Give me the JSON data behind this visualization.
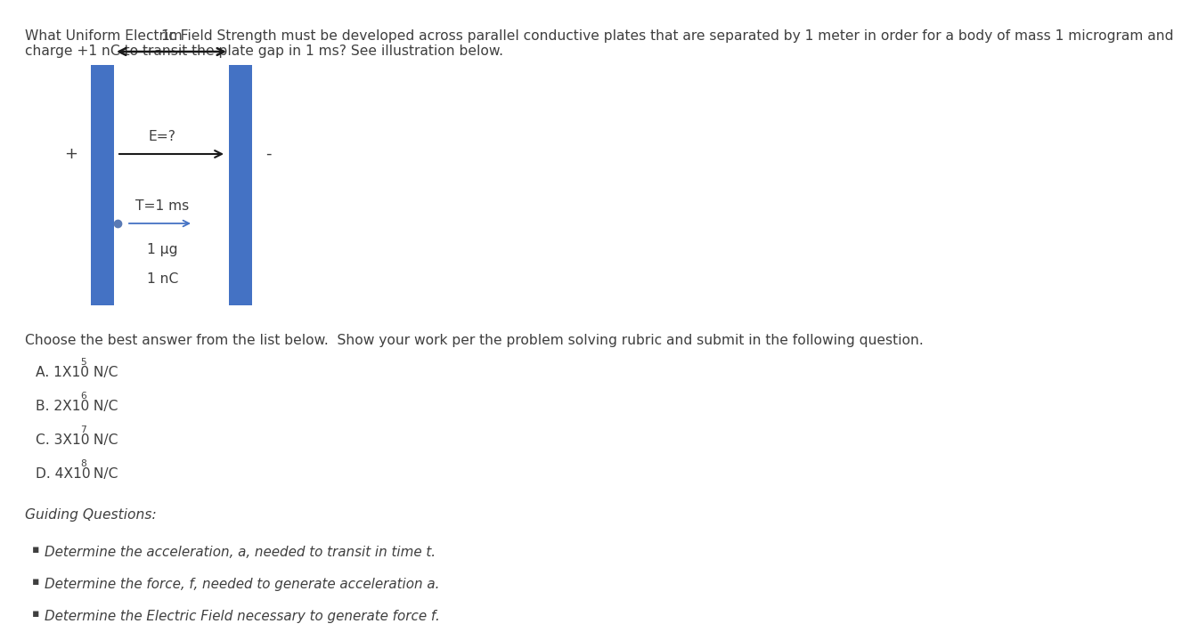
{
  "bg_color": "#ffffff",
  "title_line1": "What Uniform Electric Field Strength must be developed across parallel conductive plates that are separated by 1 meter in order for a body of mass 1 microgram and",
  "title_line2": "charge +1 nC to transit the plate gap in 1 ms? See illustration below.",
  "title_fontsize": 11.2,
  "plate_color": "#4472C4",
  "label_1m": "1m",
  "label_E": "E=?",
  "label_T": "T=1 ms",
  "label_mass": "1 μg",
  "label_charge": "1 nC",
  "plus_label": "+",
  "minus_label": "-",
  "answer_A_base": "A. 1X10",
  "answer_A_exp": "5",
  "answer_A_unit": " N/C",
  "answer_B_base": "B. 2X10",
  "answer_B_exp": "6",
  "answer_B_unit": " N/C",
  "answer_C_base": "C. 3X10",
  "answer_C_exp": "7",
  "answer_C_unit": " N/C",
  "answer_D_base": "D. 4X10",
  "answer_D_exp": "8",
  "answer_D_unit": " N/C",
  "choose_text": "Choose the best answer from the list below.  Show your work per the problem solving rubric and submit in the following question.",
  "guiding_title": "Guiding Questions:",
  "guiding_q1": "Determine the acceleration, a, needed to transit in time t.",
  "guiding_q2": "Determine the force, f, needed to generate acceleration a.",
  "guiding_q3": "Determine the Electric Field necessary to generate force f.",
  "text_color": "#3f3f3f",
  "text_fontsize": 11.2,
  "arrow_color": "#4472C4",
  "black_arrow_color": "#1a1a1a"
}
